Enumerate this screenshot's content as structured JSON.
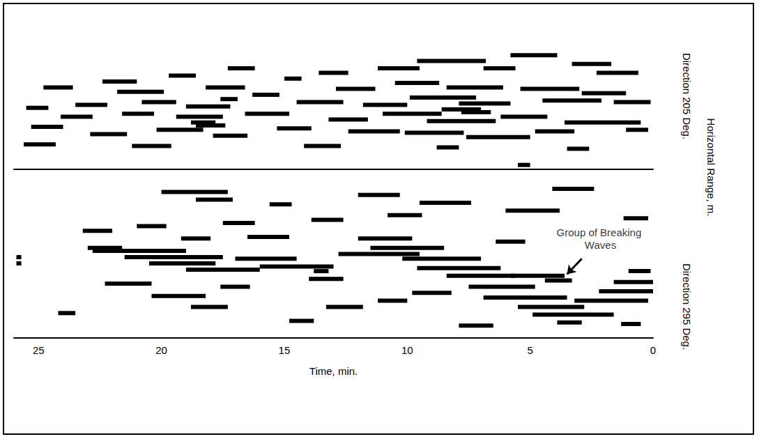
{
  "ylabel": "Horizontal Range, m.",
  "chart_data": [
    {
      "type": "segments",
      "title": "Direction 205 Deg.",
      "color": "#000000",
      "xlim": [
        26,
        0
      ],
      "xticks": [
        25,
        20,
        15,
        10,
        5,
        0
      ],
      "ylim": [
        0,
        10
      ],
      "tick_labels": false,
      "grid": false,
      "segments": [
        [
          5.8,
          3.9,
          7.8
        ],
        [
          3.3,
          1.7,
          7.2
        ],
        [
          9.6,
          6.8,
          7.4
        ],
        [
          6.9,
          5.6,
          6.9
        ],
        [
          2.3,
          0.6,
          6.6
        ],
        [
          11.2,
          9.5,
          6.9
        ],
        [
          13.6,
          12.4,
          6.6
        ],
        [
          17.3,
          16.2,
          6.9
        ],
        [
          15.0,
          14.3,
          6.2
        ],
        [
          19.7,
          18.6,
          6.4
        ],
        [
          22.4,
          21.0,
          6.0
        ],
        [
          24.8,
          23.6,
          5.6
        ],
        [
          21.8,
          19.9,
          5.3
        ],
        [
          18.2,
          16.6,
          5.6
        ],
        [
          16.3,
          15.2,
          5.1
        ],
        [
          12.9,
          11.3,
          5.5
        ],
        [
          10.5,
          8.7,
          5.9
        ],
        [
          8.4,
          6.1,
          5.6
        ],
        [
          5.4,
          3.0,
          5.5
        ],
        [
          2.9,
          1.1,
          5.2
        ],
        [
          4.5,
          2.1,
          4.7
        ],
        [
          1.6,
          0.1,
          4.6
        ],
        [
          7.9,
          5.8,
          4.5
        ],
        [
          9.9,
          7.2,
          4.9
        ],
        [
          11.8,
          10.0,
          4.4
        ],
        [
          14.5,
          12.6,
          4.6
        ],
        [
          17.6,
          16.9,
          4.8
        ],
        [
          19.0,
          17.2,
          4.3
        ],
        [
          20.8,
          19.4,
          4.6
        ],
        [
          23.5,
          22.2,
          4.4
        ],
        [
          25.5,
          24.6,
          4.2
        ],
        [
          24.1,
          22.8,
          3.6
        ],
        [
          21.6,
          20.3,
          3.8
        ],
        [
          19.4,
          17.5,
          3.6
        ],
        [
          18.8,
          17.8,
          3.2
        ],
        [
          16.6,
          14.8,
          3.8
        ],
        [
          13.2,
          11.6,
          3.4
        ],
        [
          11.0,
          8.6,
          3.8
        ],
        [
          9.2,
          6.4,
          3.3
        ],
        [
          6.2,
          4.3,
          3.6
        ],
        [
          3.6,
          0.5,
          3.2
        ],
        [
          1.1,
          0.2,
          2.7
        ],
        [
          25.3,
          24.0,
          2.9
        ],
        [
          22.9,
          21.4,
          2.4
        ],
        [
          20.2,
          18.3,
          2.7
        ],
        [
          17.9,
          16.5,
          2.3
        ],
        [
          15.3,
          13.9,
          2.8
        ],
        [
          12.4,
          10.3,
          2.6
        ],
        [
          10.1,
          7.7,
          2.5
        ],
        [
          7.6,
          5.0,
          2.2
        ],
        [
          4.8,
          3.2,
          2.6
        ],
        [
          25.6,
          24.3,
          1.7
        ],
        [
          21.2,
          19.6,
          1.6
        ],
        [
          14.2,
          12.7,
          1.6
        ],
        [
          8.8,
          7.9,
          1.5
        ],
        [
          3.5,
          2.6,
          1.4
        ],
        [
          5.5,
          5.0,
          0.3
        ],
        [
          18.6,
          17.4,
          3.0
        ],
        [
          8.6,
          7.0,
          4.1
        ],
        [
          7.8,
          6.6,
          3.9
        ]
      ]
    },
    {
      "type": "segments",
      "title": "Direction 295 Deg.",
      "color": "#000000",
      "xlim": [
        26,
        0
      ],
      "xticks": [
        25,
        20,
        15,
        10,
        5,
        0
      ],
      "ylim": [
        0,
        10
      ],
      "xlabel": "Time, min.",
      "tick_labels": "x",
      "grid": false,
      "segments": [
        [
          20.0,
          17.3,
          9.4
        ],
        [
          18.6,
          17.1,
          8.9
        ],
        [
          15.6,
          14.7,
          8.6
        ],
        [
          12.0,
          10.3,
          9.2
        ],
        [
          9.5,
          7.4,
          8.7
        ],
        [
          4.1,
          2.4,
          9.6
        ],
        [
          1.2,
          0.2,
          7.7
        ],
        [
          6.0,
          3.8,
          8.2
        ],
        [
          10.8,
          9.4,
          7.9
        ],
        [
          13.9,
          12.6,
          7.6
        ],
        [
          17.5,
          16.2,
          7.4
        ],
        [
          21.0,
          19.8,
          7.2
        ],
        [
          23.2,
          22.0,
          6.9
        ],
        [
          25.9,
          25.7,
          4.8
        ],
        [
          25.9,
          25.7,
          5.2
        ],
        [
          22.8,
          19.0,
          5.6
        ],
        [
          21.5,
          17.5,
          5.2
        ],
        [
          20.5,
          17.8,
          4.8
        ],
        [
          19.0,
          16.0,
          4.4
        ],
        [
          23.0,
          21.6,
          5.8
        ],
        [
          17.0,
          14.5,
          5.1
        ],
        [
          16.0,
          13.0,
          4.6
        ],
        [
          14.0,
          12.6,
          3.8
        ],
        [
          13.8,
          13.2,
          4.3
        ],
        [
          12.8,
          9.5,
          5.4
        ],
        [
          11.5,
          8.5,
          5.8
        ],
        [
          10.2,
          7.0,
          5.1
        ],
        [
          9.6,
          6.2,
          4.5
        ],
        [
          8.4,
          5.6,
          4.0
        ],
        [
          7.5,
          4.8,
          3.3
        ],
        [
          6.9,
          3.5,
          2.6
        ],
        [
          5.5,
          2.8,
          2.0
        ],
        [
          4.9,
          1.6,
          1.5
        ],
        [
          3.2,
          0.2,
          2.4
        ],
        [
          2.2,
          0.0,
          3.0
        ],
        [
          1.6,
          0.0,
          3.6
        ],
        [
          1.0,
          0.1,
          4.3
        ],
        [
          6.4,
          5.2,
          6.2
        ],
        [
          12.0,
          9.8,
          6.4
        ],
        [
          16.5,
          14.8,
          6.5
        ],
        [
          19.2,
          18.0,
          6.4
        ],
        [
          9.8,
          8.2,
          2.9
        ],
        [
          11.2,
          10.0,
          2.4
        ],
        [
          13.3,
          11.8,
          2.0
        ],
        [
          14.8,
          13.8,
          1.1
        ],
        [
          18.8,
          17.3,
          2.0
        ],
        [
          20.4,
          18.2,
          2.7
        ],
        [
          22.3,
          20.4,
          3.5
        ],
        [
          24.2,
          23.5,
          1.6
        ],
        [
          5.8,
          3.6,
          4.0
        ],
        [
          4.4,
          3.3,
          3.7
        ],
        [
          7.9,
          6.5,
          0.8
        ],
        [
          3.9,
          2.9,
          1.0
        ],
        [
          1.3,
          0.5,
          0.9
        ],
        [
          17.6,
          16.4,
          3.3
        ]
      ],
      "annotations": [
        {
          "text": "Group of Breaking Waves",
          "x": 2.2,
          "y": 6.4,
          "arrow_from": [
            2.9,
            5.1
          ],
          "arrow_to": [
            3.5,
            4.1
          ]
        }
      ]
    }
  ]
}
